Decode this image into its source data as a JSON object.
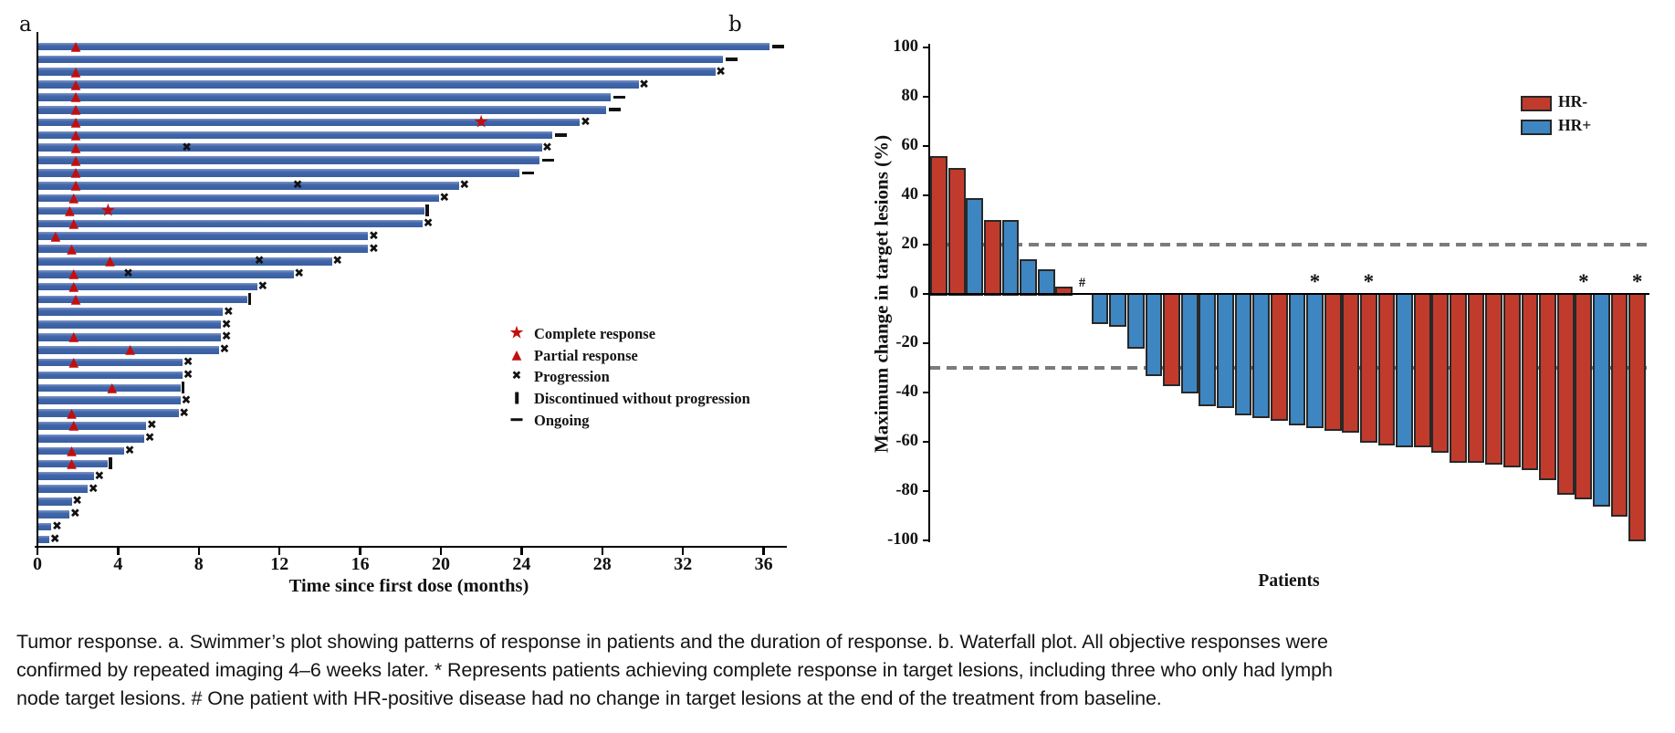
{
  "figure": {
    "panel_a_label": "a",
    "panel_b_label": "b"
  },
  "caption_lines": [
    "Tumor response. a. Swimmer’s plot showing patterns of response in patients and the duration of response. b. Waterfall plot. All objective responses were",
    "confirmed by repeated imaging 4–6 weeks later. * Represents patients achieving complete response in target lesions, including three who only had lymph",
    "node target lesions. # One patient with HR-positive disease had no change in target lesions at the end of the treatment from baseline."
  ],
  "colors": {
    "swim_bar": "#3A5FA0",
    "marker_red": "#C30E0E",
    "marker_black": "#121212",
    "hr_neg": "#C13B2C",
    "hr_pos": "#3E86C1",
    "bar_border": "#282828",
    "ref_dash": "#7B7B7B",
    "axis": "#000000"
  },
  "chart_data": [
    {
      "type": "bar",
      "subtype": "swimmer",
      "xlabel": "Time since first dose (months)",
      "x_ticks": [
        0,
        4,
        8,
        12,
        16,
        20,
        24,
        28,
        32,
        36
      ],
      "xlim": [
        0,
        37.2
      ],
      "grid": false,
      "legend_position": "center-right",
      "legend": [
        {
          "symbol": "star",
          "label": "Complete response"
        },
        {
          "symbol": "tri",
          "label": "Partial response"
        },
        {
          "symbol": "x",
          "label": "Progression"
        },
        {
          "symbol": "bar",
          "label": "Discontinued without progression"
        },
        {
          "symbol": "dash",
          "label": "Ongoing"
        }
      ],
      "bars": [
        {
          "len": 36.3,
          "end": "dash",
          "marks": [
            {
              "t": "tri",
              "m": 1.9
            }
          ]
        },
        {
          "len": 34.0,
          "end": "dash",
          "marks": []
        },
        {
          "len": 33.6,
          "end": "x",
          "marks": [
            {
              "t": "tri",
              "m": 1.9
            }
          ]
        },
        {
          "len": 29.8,
          "end": "x",
          "marks": [
            {
              "t": "tri",
              "m": 1.9
            }
          ]
        },
        {
          "len": 28.4,
          "end": "dash",
          "marks": [
            {
              "t": "tri",
              "m": 1.9
            }
          ]
        },
        {
          "len": 28.2,
          "end": "dash",
          "marks": [
            {
              "t": "tri",
              "m": 1.9
            }
          ]
        },
        {
          "len": 26.9,
          "end": "x",
          "marks": [
            {
              "t": "tri",
              "m": 1.9
            },
            {
              "t": "star",
              "m": 22.0
            }
          ]
        },
        {
          "len": 25.5,
          "end": "dash",
          "marks": [
            {
              "t": "tri",
              "m": 1.9
            }
          ]
        },
        {
          "len": 25.0,
          "end": "x",
          "marks": [
            {
              "t": "tri",
              "m": 1.9
            },
            {
              "t": "x",
              "m": 7.4
            }
          ]
        },
        {
          "len": 24.9,
          "end": "dash",
          "marks": [
            {
              "t": "tri",
              "m": 1.9
            }
          ]
        },
        {
          "len": 23.9,
          "end": "dash",
          "marks": [
            {
              "t": "tri",
              "m": 1.9
            }
          ]
        },
        {
          "len": 20.9,
          "end": "x",
          "marks": [
            {
              "t": "tri",
              "m": 1.9
            },
            {
              "t": "x",
              "m": 12.9
            }
          ]
        },
        {
          "len": 19.9,
          "end": "x",
          "marks": [
            {
              "t": "tri",
              "m": 1.8
            }
          ]
        },
        {
          "len": 19.2,
          "end": "bar",
          "marks": [
            {
              "t": "tri",
              "m": 1.6
            },
            {
              "t": "star",
              "m": 3.5
            }
          ]
        },
        {
          "len": 19.1,
          "end": "x",
          "marks": [
            {
              "t": "tri",
              "m": 1.8
            }
          ]
        },
        {
          "len": 16.4,
          "end": "x",
          "marks": [
            {
              "t": "tri",
              "m": 0.9
            }
          ]
        },
        {
          "len": 16.4,
          "end": "x",
          "marks": [
            {
              "t": "tri",
              "m": 1.7
            }
          ]
        },
        {
          "len": 14.6,
          "end": "x",
          "marks": [
            {
              "t": "tri",
              "m": 3.6
            },
            {
              "t": "x",
              "m": 11.0
            }
          ]
        },
        {
          "len": 12.7,
          "end": "x",
          "marks": [
            {
              "t": "tri",
              "m": 1.8
            },
            {
              "t": "x",
              "m": 4.5
            }
          ]
        },
        {
          "len": 10.9,
          "end": "x",
          "marks": [
            {
              "t": "tri",
              "m": 1.8
            }
          ]
        },
        {
          "len": 10.4,
          "end": "bar",
          "marks": [
            {
              "t": "tri",
              "m": 1.9
            }
          ]
        },
        {
          "len": 9.2,
          "end": "x",
          "marks": []
        },
        {
          "len": 9.1,
          "end": "x",
          "marks": []
        },
        {
          "len": 9.1,
          "end": "x",
          "marks": [
            {
              "t": "tri",
              "m": 1.8
            }
          ]
        },
        {
          "len": 9.0,
          "end": "x",
          "marks": [
            {
              "t": "tri",
              "m": 4.6
            }
          ]
        },
        {
          "len": 7.2,
          "end": "x",
          "marks": [
            {
              "t": "tri",
              "m": 1.8
            }
          ]
        },
        {
          "len": 7.2,
          "end": "x",
          "marks": []
        },
        {
          "len": 7.1,
          "end": "bar",
          "marks": [
            {
              "t": "tri",
              "m": 3.7
            }
          ]
        },
        {
          "len": 7.1,
          "end": "x",
          "marks": []
        },
        {
          "len": 7.0,
          "end": "x",
          "marks": [
            {
              "t": "tri",
              "m": 1.7
            }
          ]
        },
        {
          "len": 5.4,
          "end": "x",
          "marks": [
            {
              "t": "tri",
              "m": 1.8
            }
          ]
        },
        {
          "len": 5.3,
          "end": "x",
          "marks": []
        },
        {
          "len": 4.3,
          "end": "x",
          "marks": [
            {
              "t": "tri",
              "m": 1.7
            }
          ]
        },
        {
          "len": 3.5,
          "end": "bar",
          "marks": [
            {
              "t": "tri",
              "m": 1.7
            }
          ]
        },
        {
          "len": 2.8,
          "end": "x",
          "marks": []
        },
        {
          "len": 2.5,
          "end": "x",
          "marks": []
        },
        {
          "len": 1.7,
          "end": "x",
          "marks": []
        },
        {
          "len": 1.6,
          "end": "x",
          "marks": []
        },
        {
          "len": 0.7,
          "end": "x",
          "marks": []
        },
        {
          "len": 0.6,
          "end": "x",
          "marks": []
        }
      ]
    },
    {
      "type": "bar",
      "subtype": "waterfall",
      "ylabel": "Maximum change in target lesions (%)",
      "xlabel": "Patients",
      "ylim": [
        -100,
        100
      ],
      "y_ticks": [
        100,
        80,
        60,
        40,
        20,
        0,
        -20,
        -40,
        -60,
        -80,
        -100
      ],
      "ref_lines": [
        20,
        -30
      ],
      "grid": false,
      "legend_position": "top-right",
      "legend": [
        {
          "label": "HR-",
          "key": "hr_neg"
        },
        {
          "label": "HR+",
          "key": "hr_pos"
        }
      ],
      "values": [
        {
          "v": 56,
          "hr": "-"
        },
        {
          "v": 51,
          "hr": "-"
        },
        {
          "v": 39,
          "hr": "+"
        },
        {
          "v": 30,
          "hr": "-"
        },
        {
          "v": 30,
          "hr": "+"
        },
        {
          "v": 14,
          "hr": "+"
        },
        {
          "v": 10,
          "hr": "+"
        },
        {
          "v": 3,
          "hr": "-"
        },
        {
          "v": 0,
          "hr": "+",
          "mark": "#"
        },
        {
          "v": -12,
          "hr": "+"
        },
        {
          "v": -13,
          "hr": "+"
        },
        {
          "v": -22,
          "hr": "+"
        },
        {
          "v": -33,
          "hr": "+"
        },
        {
          "v": -37,
          "hr": "-"
        },
        {
          "v": -40,
          "hr": "+"
        },
        {
          "v": -45,
          "hr": "+"
        },
        {
          "v": -46,
          "hr": "+"
        },
        {
          "v": -49,
          "hr": "+"
        },
        {
          "v": -50,
          "hr": "+"
        },
        {
          "v": -51,
          "hr": "-"
        },
        {
          "v": -53,
          "hr": "+"
        },
        {
          "v": -54,
          "hr": "+",
          "mark": "*"
        },
        {
          "v": -55,
          "hr": "-"
        },
        {
          "v": -56,
          "hr": "-"
        },
        {
          "v": -60,
          "hr": "-",
          "mark": "*"
        },
        {
          "v": -61,
          "hr": "-"
        },
        {
          "v": -62,
          "hr": "+"
        },
        {
          "v": -62,
          "hr": "-"
        },
        {
          "v": -64,
          "hr": "-"
        },
        {
          "v": -68,
          "hr": "-"
        },
        {
          "v": -68,
          "hr": "-"
        },
        {
          "v": -69,
          "hr": "-"
        },
        {
          "v": -70,
          "hr": "-"
        },
        {
          "v": -71,
          "hr": "-"
        },
        {
          "v": -75,
          "hr": "-"
        },
        {
          "v": -81,
          "hr": "-"
        },
        {
          "v": -83,
          "hr": "-",
          "mark": "*"
        },
        {
          "v": -86,
          "hr": "+"
        },
        {
          "v": -90,
          "hr": "-"
        },
        {
          "v": -100,
          "hr": "-",
          "mark": "*"
        }
      ]
    }
  ]
}
